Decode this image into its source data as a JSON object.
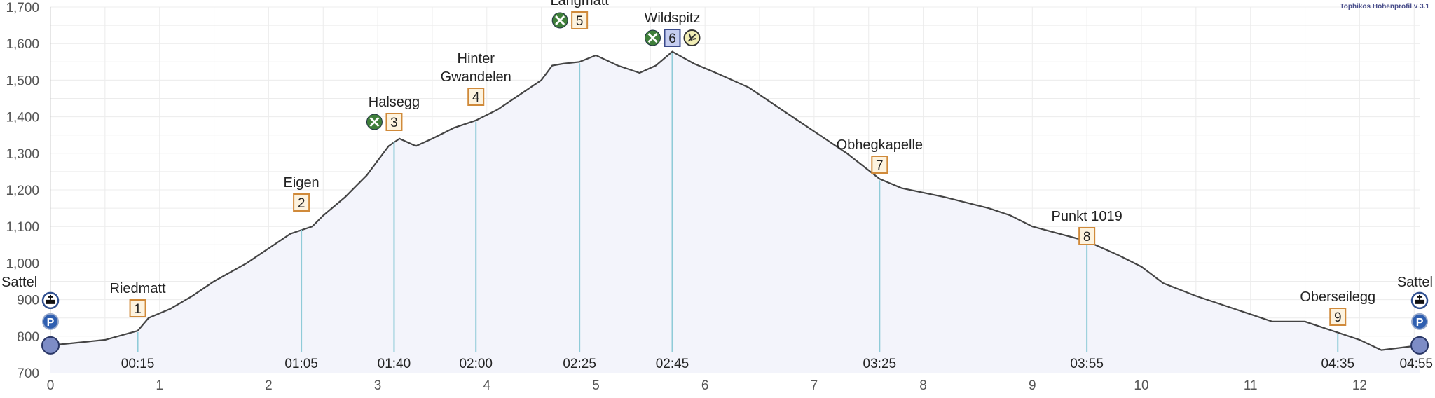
{
  "watermark": "Tophikos Höhenprofil v 3.1",
  "chart_data": {
    "type": "area",
    "title": "",
    "xlabel": "",
    "ylabel": "",
    "xlim": [
      0,
      12.55
    ],
    "ylim": [
      700,
      1700
    ],
    "grid": true,
    "x_ticks": [
      "0",
      "1",
      "2",
      "3",
      "4",
      "5",
      "6",
      "7",
      "8",
      "9",
      "10",
      "11",
      "12"
    ],
    "y_ticks": [
      "700",
      "800",
      "900",
      "1,000",
      "1,100",
      "1,200",
      "1,300",
      "1,400",
      "1,500",
      "1,600",
      "1,700"
    ],
    "colors": {
      "line": "#444444",
      "fill": "#f3f4fb",
      "marker_line": "#8fcbd8",
      "box_border": "#d08a3a",
      "box_fill": "#fdf3df",
      "box_highlight": "#c5cdf0",
      "endpoint": "#7d8cc6",
      "restaurant": "#3f7f3a",
      "parking": "#2f5fb0"
    },
    "profile": {
      "x": [
        0,
        0.5,
        0.8,
        0.9,
        1.1,
        1.3,
        1.5,
        1.8,
        2.0,
        2.2,
        2.4,
        2.5,
        2.7,
        2.9,
        3.0,
        3.1,
        3.2,
        3.35,
        3.5,
        3.7,
        3.9,
        4.1,
        4.3,
        4.5,
        4.6,
        4.7,
        4.85,
        5.0,
        5.2,
        5.4,
        5.55,
        5.7,
        5.9,
        6.1,
        6.4,
        6.7,
        7.0,
        7.3,
        7.6,
        7.8,
        8.2,
        8.6,
        8.8,
        9.0,
        9.5,
        9.8,
        10.0,
        10.2,
        10.5,
        10.8,
        11.2,
        11.5,
        11.8,
        12.0,
        12.2,
        12.55
      ],
      "y": [
        775,
        790,
        815,
        850,
        875,
        910,
        950,
        1000,
        1040,
        1080,
        1100,
        1130,
        1180,
        1240,
        1280,
        1320,
        1340,
        1320,
        1340,
        1370,
        1390,
        1420,
        1460,
        1500,
        1540,
        1545,
        1550,
        1568,
        1540,
        1520,
        1540,
        1578,
        1545,
        1520,
        1480,
        1420,
        1360,
        1300,
        1230,
        1205,
        1180,
        1150,
        1130,
        1100,
        1060,
        1020,
        990,
        945,
        910,
        880,
        840,
        840,
        810,
        790,
        762,
        775
      ]
    },
    "waypoints": [
      {
        "name": "Sattel",
        "km": 0,
        "elev": 775,
        "time": "",
        "number": "",
        "icons": [
          "public-transport",
          "parking"
        ],
        "endpoint": true
      },
      {
        "name": "Riedmatt",
        "km": 0.8,
        "elev": 815,
        "time": "00:15",
        "number": "1",
        "icons": []
      },
      {
        "name": "Eigen",
        "km": 2.3,
        "elev": 1095,
        "time": "01:05",
        "number": "2",
        "icons": []
      },
      {
        "name": "Halsegg",
        "km": 3.15,
        "elev": 1335,
        "time": "01:40",
        "number": "3",
        "icons": [
          "restaurant"
        ]
      },
      {
        "name": "Hinter Gwandelen",
        "km": 3.9,
        "elev": 1390,
        "time": "02:00",
        "number": "4",
        "icons": []
      },
      {
        "name": "Langmatt",
        "km": 4.85,
        "elev": 1550,
        "time": "02:25",
        "number": "5",
        "icons": [
          "restaurant"
        ]
      },
      {
        "name": "Wildspitz",
        "km": 5.7,
        "elev": 1578,
        "time": "02:45",
        "number": "6",
        "icons": [
          "restaurant",
          "viewpoint"
        ],
        "highlight": true
      },
      {
        "name": "Obhegkapelle",
        "km": 7.6,
        "elev": 1230,
        "time": "03:25",
        "number": "7",
        "icons": []
      },
      {
        "name": "Punkt 1019",
        "km": 9.5,
        "elev": 1060,
        "time": "03:55",
        "number": "8",
        "icons": []
      },
      {
        "name": "Oberseilegg",
        "km": 11.8,
        "elev": 810,
        "time": "04:35",
        "number": "9",
        "icons": []
      },
      {
        "name": "Sattel",
        "km": 12.55,
        "elev": 775,
        "time": "04:55",
        "number": "",
        "icons": [
          "public-transport",
          "parking"
        ],
        "endpoint": true
      }
    ]
  }
}
